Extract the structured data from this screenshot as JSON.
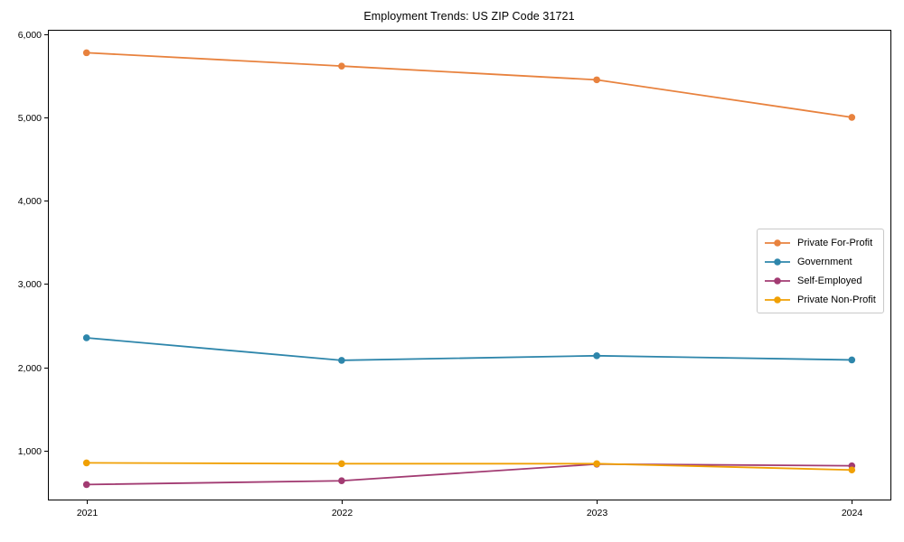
{
  "figure": {
    "background": "#ffffff",
    "axis_color": "#000000",
    "text_color": "#000000"
  },
  "chart_data": {
    "type": "line",
    "title": "Employment Trends: US ZIP Code 31721",
    "xlabel": "",
    "ylabel": "",
    "grid": false,
    "legend_position": "center-right",
    "categories": [
      "2021",
      "2022",
      "2023",
      "2024"
    ],
    "ylim": [
      415,
      6050
    ],
    "y_ticks": [
      {
        "v": 1000,
        "label": "1,000"
      },
      {
        "v": 2000,
        "label": "2,000"
      },
      {
        "v": 3000,
        "label": "3,000"
      },
      {
        "v": 4000,
        "label": "4,000"
      },
      {
        "v": 5000,
        "label": "5,000"
      },
      {
        "v": 6000,
        "label": "6,000"
      }
    ],
    "series": [
      {
        "name": "Private For-Profit",
        "color": "#E8823E",
        "values": [
          5775,
          5615,
          5450,
          5000
        ]
      },
      {
        "name": "Government",
        "color": "#2E86AB",
        "values": [
          2355,
          2085,
          2140,
          2090
        ]
      },
      {
        "name": "Self-Employed",
        "color": "#A23B72",
        "values": [
          595,
          640,
          840,
          820
        ]
      },
      {
        "name": "Private Non-Profit",
        "color": "#F0A005",
        "values": [
          855,
          845,
          845,
          770
        ]
      }
    ]
  }
}
